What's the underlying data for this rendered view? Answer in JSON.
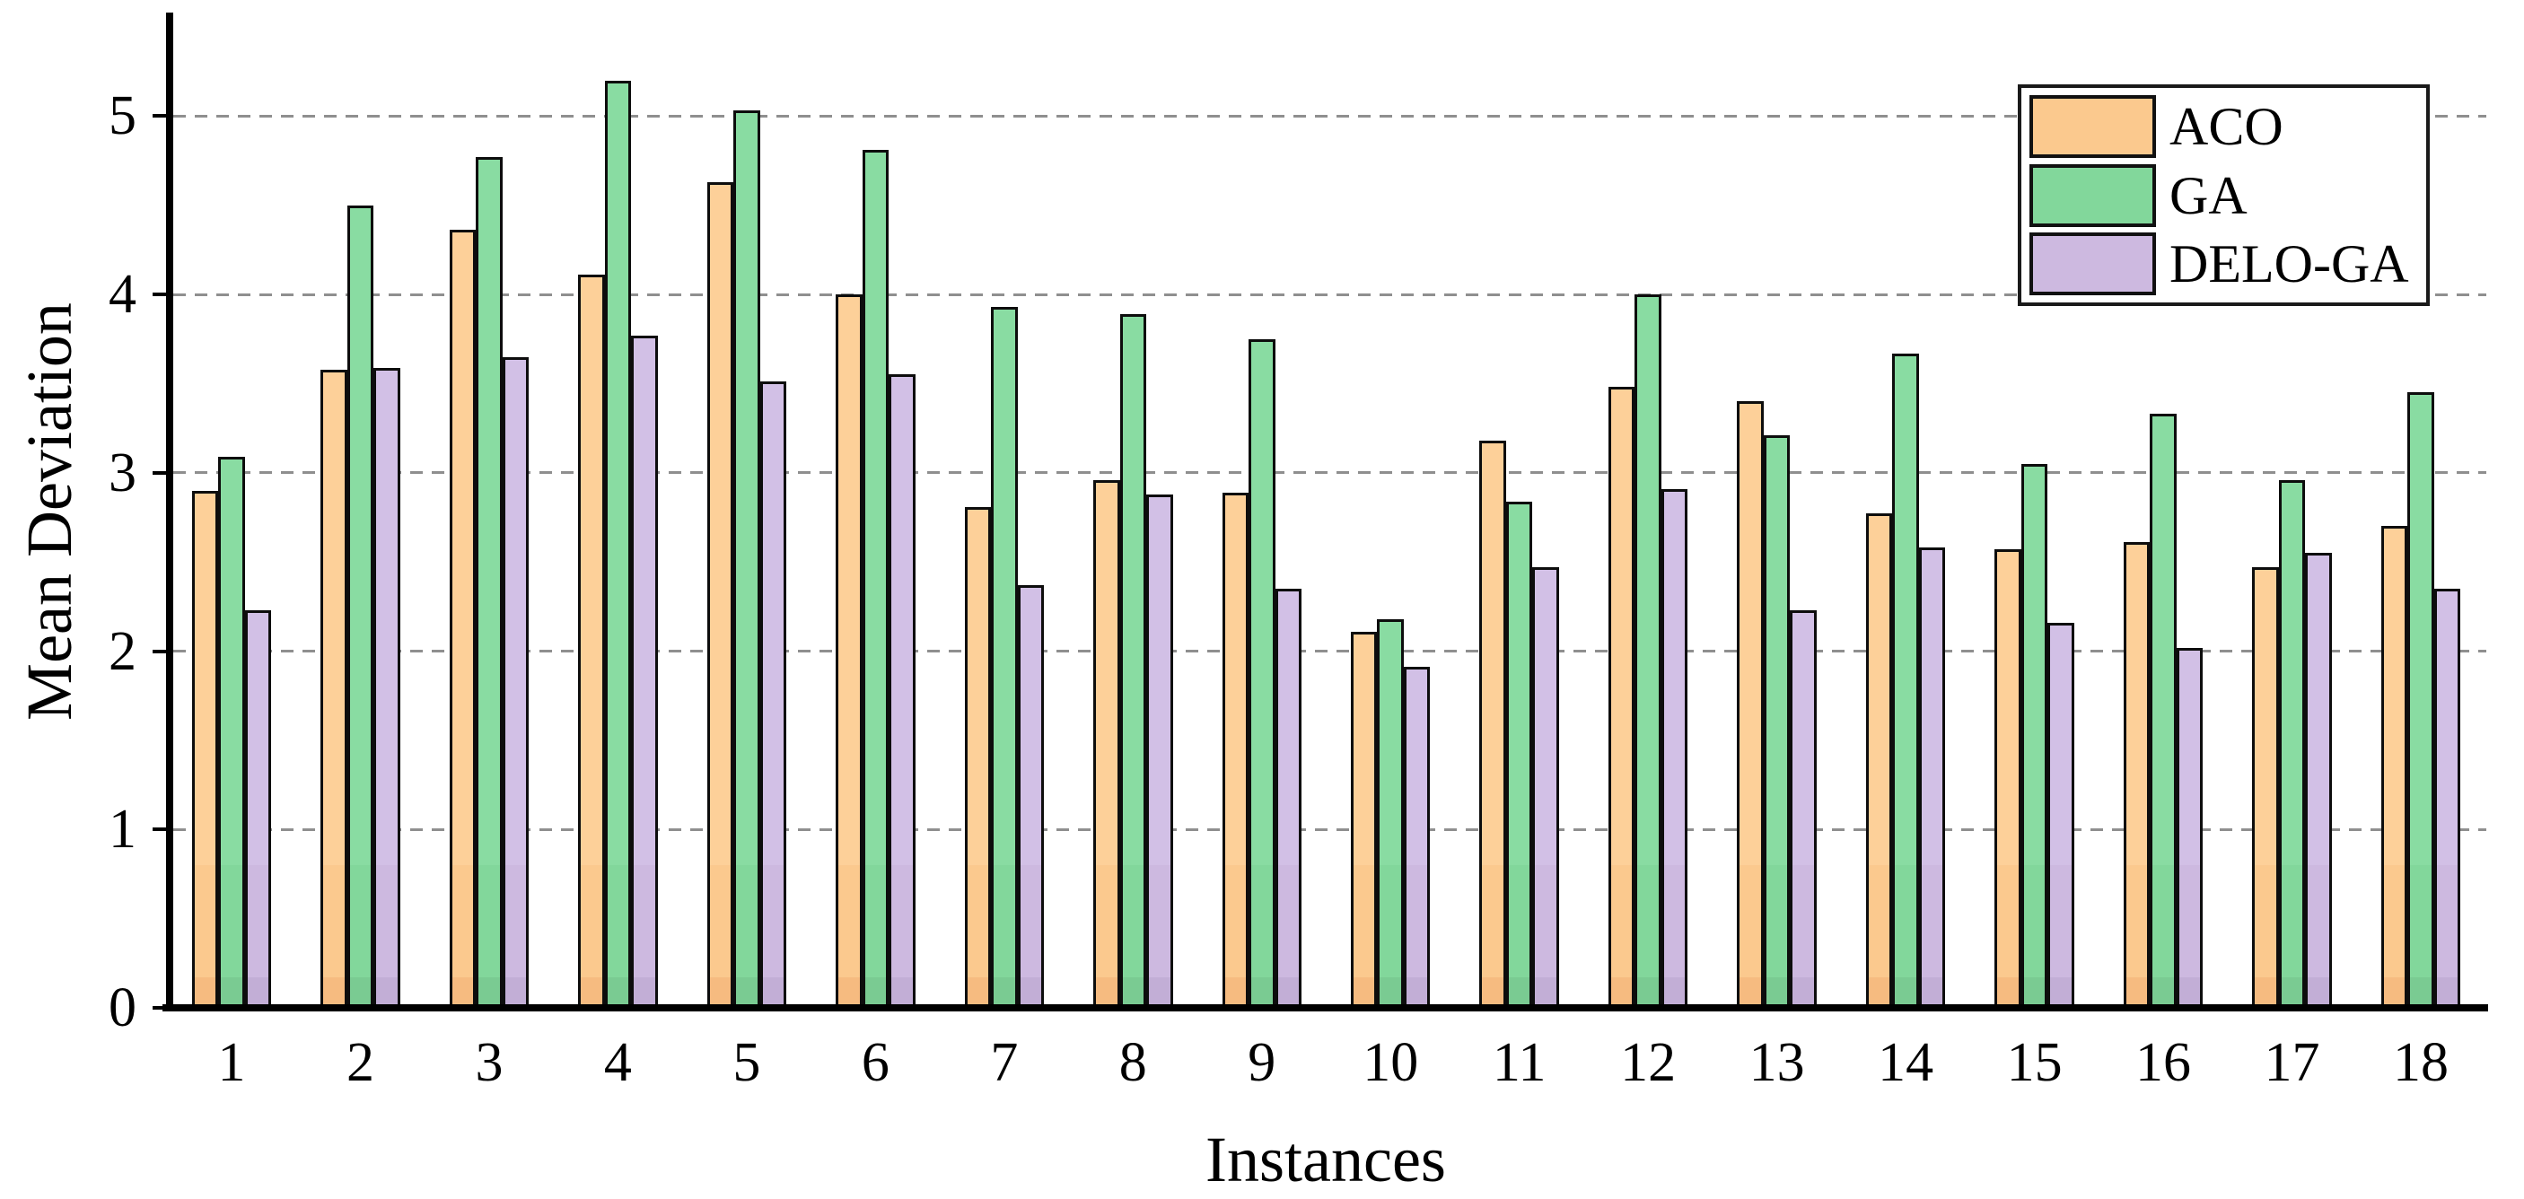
{
  "chart_data": {
    "type": "bar",
    "title": "",
    "xlabel": "Instances",
    "ylabel": "Mean Deviation",
    "categories": [
      "1",
      "2",
      "3",
      "4",
      "5",
      "6",
      "7",
      "8",
      "9",
      "10",
      "11",
      "12",
      "13",
      "14",
      "15",
      "16",
      "17",
      "18"
    ],
    "series": [
      {
        "name": "ACO",
        "color": "#FBC98E",
        "color_light": "#FDD099",
        "color_dark": "#F6BB80",
        "values": [
          2.9,
          3.58,
          4.36,
          4.11,
          4.63,
          4.0,
          2.81,
          2.96,
          2.89,
          2.11,
          3.18,
          3.48,
          3.4,
          2.77,
          2.57,
          2.61,
          2.47,
          2.7
        ]
      },
      {
        "name": "GA",
        "color": "#82D79B",
        "color_light": "#89DCA2",
        "color_dark": "#7ACB92",
        "values": [
          3.09,
          4.5,
          4.77,
          5.2,
          5.03,
          4.81,
          3.93,
          3.89,
          3.75,
          2.18,
          2.84,
          4.0,
          3.21,
          3.67,
          3.05,
          3.33,
          2.96,
          3.45
        ]
      },
      {
        "name": "DELO-GA",
        "color": "#CDB9E0",
        "color_light": "#D2C0E6",
        "color_dark": "#C2AED6",
        "values": [
          2.23,
          3.59,
          3.65,
          3.77,
          3.51,
          3.55,
          2.37,
          2.88,
          2.35,
          1.91,
          2.47,
          2.91,
          2.23,
          2.58,
          2.16,
          2.02,
          2.55,
          2.35
        ]
      }
    ],
    "y_ticks": [
      "0",
      "1",
      "2",
      "3",
      "4",
      "5"
    ],
    "ylim": [
      0,
      5.6
    ],
    "grid": "horizontal-dashed",
    "grid_color": "#8f8f8f",
    "bar_edge_color": "#0d0d0d",
    "legend_position": "upper-right",
    "legend_entries": [
      "ACO",
      "GA",
      "DELO-GA"
    ]
  }
}
